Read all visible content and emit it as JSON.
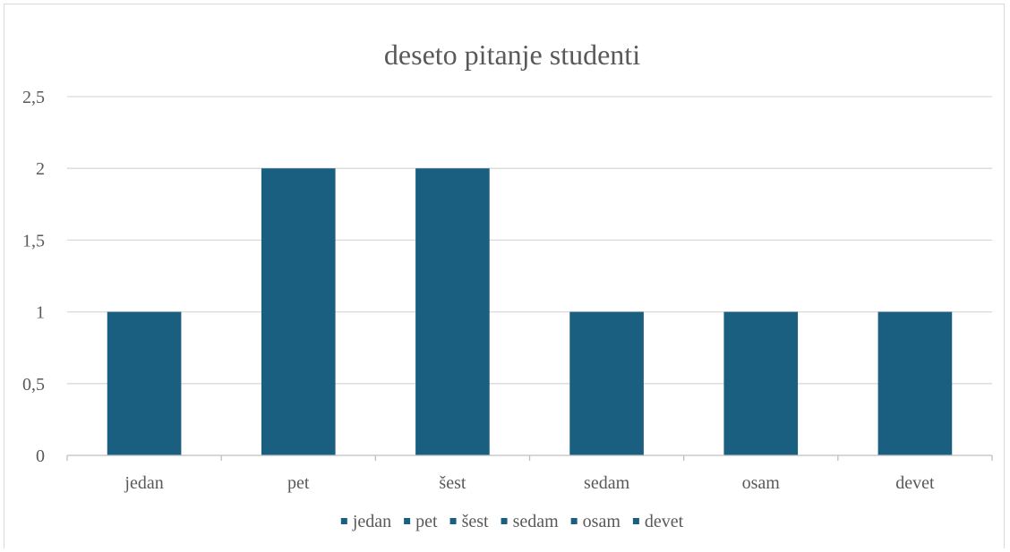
{
  "chart_data": {
    "type": "bar",
    "title": "deseto pitanje studenti",
    "categories": [
      "jedan",
      "pet",
      "šest",
      "sedam",
      "osam",
      "devet"
    ],
    "values": [
      1,
      2,
      2,
      1,
      1,
      1
    ],
    "ylim": [
      0,
      2.5
    ],
    "yticks": [
      "0",
      "0,5",
      "1",
      "1,5",
      "2",
      "2,5"
    ],
    "ytick_values": [
      0,
      0.5,
      1,
      1.5,
      2,
      2.5
    ],
    "xlabel": "",
    "ylabel": "",
    "grid": true,
    "legend": {
      "placement": "bottom",
      "entries": [
        "jedan",
        "pet",
        "šest",
        "sedam",
        "osam",
        "devet"
      ]
    },
    "colors": {
      "bar": "#1a5f80",
      "grid": "#d9d9d9",
      "text": "#595959",
      "axis": "#bfbfbf"
    }
  }
}
